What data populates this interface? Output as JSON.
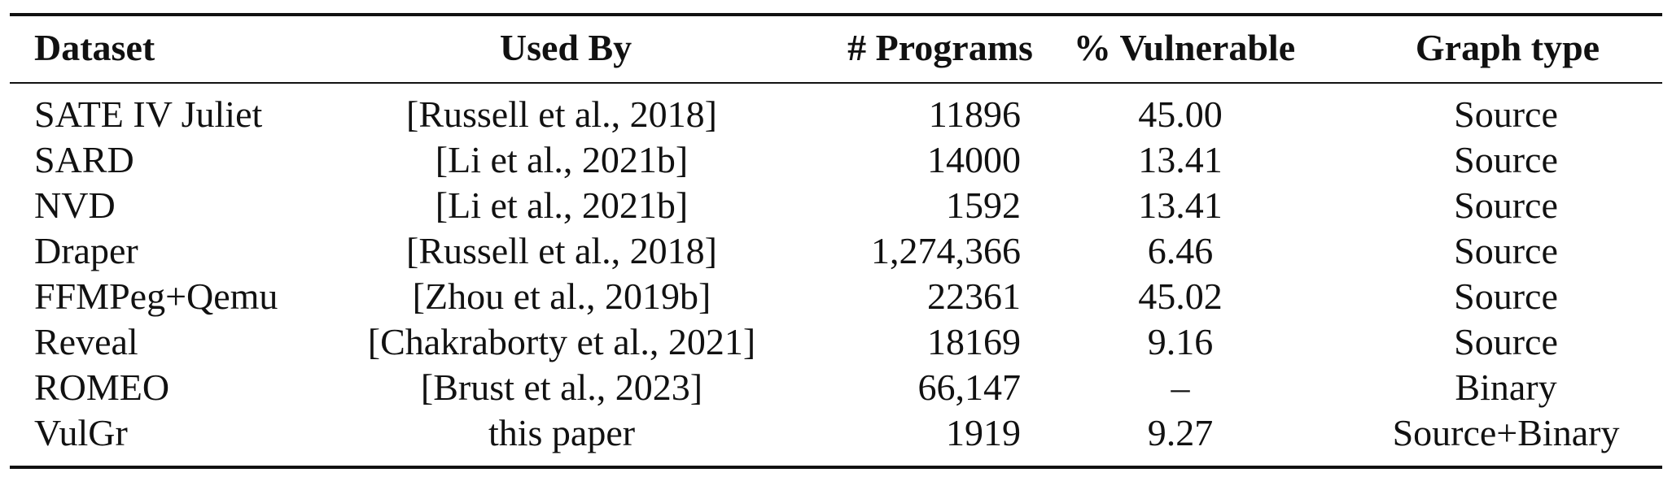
{
  "table": {
    "headers": [
      "Dataset",
      "Used By",
      "# Programs",
      "% Vulnerable",
      "Graph type"
    ],
    "rows": [
      [
        "SATE IV Juliet",
        "[Russell et al., 2018]",
        "11896",
        "45.00",
        "Source"
      ],
      [
        "SARD",
        "[Li et al., 2021b]",
        "14000",
        "13.41",
        "Source"
      ],
      [
        "NVD",
        "[Li et al., 2021b]",
        "1592",
        "13.41",
        "Source"
      ],
      [
        "Draper",
        "[Russell et al., 2018]",
        "1,274,366",
        "6.46",
        "Source"
      ],
      [
        "FFMPeg+Qemu",
        "[Zhou et al., 2019b]",
        "22361",
        "45.02",
        "Source"
      ],
      [
        "Reveal",
        "[Chakraborty et al., 2021]",
        "18169",
        "9.16",
        "Source"
      ],
      [
        "ROMEO",
        "[Brust et al., 2023]",
        "66,147",
        "–",
        "Binary"
      ],
      [
        "VulGr",
        "this paper",
        "1919",
        "9.27",
        "Source+Binary"
      ]
    ]
  }
}
